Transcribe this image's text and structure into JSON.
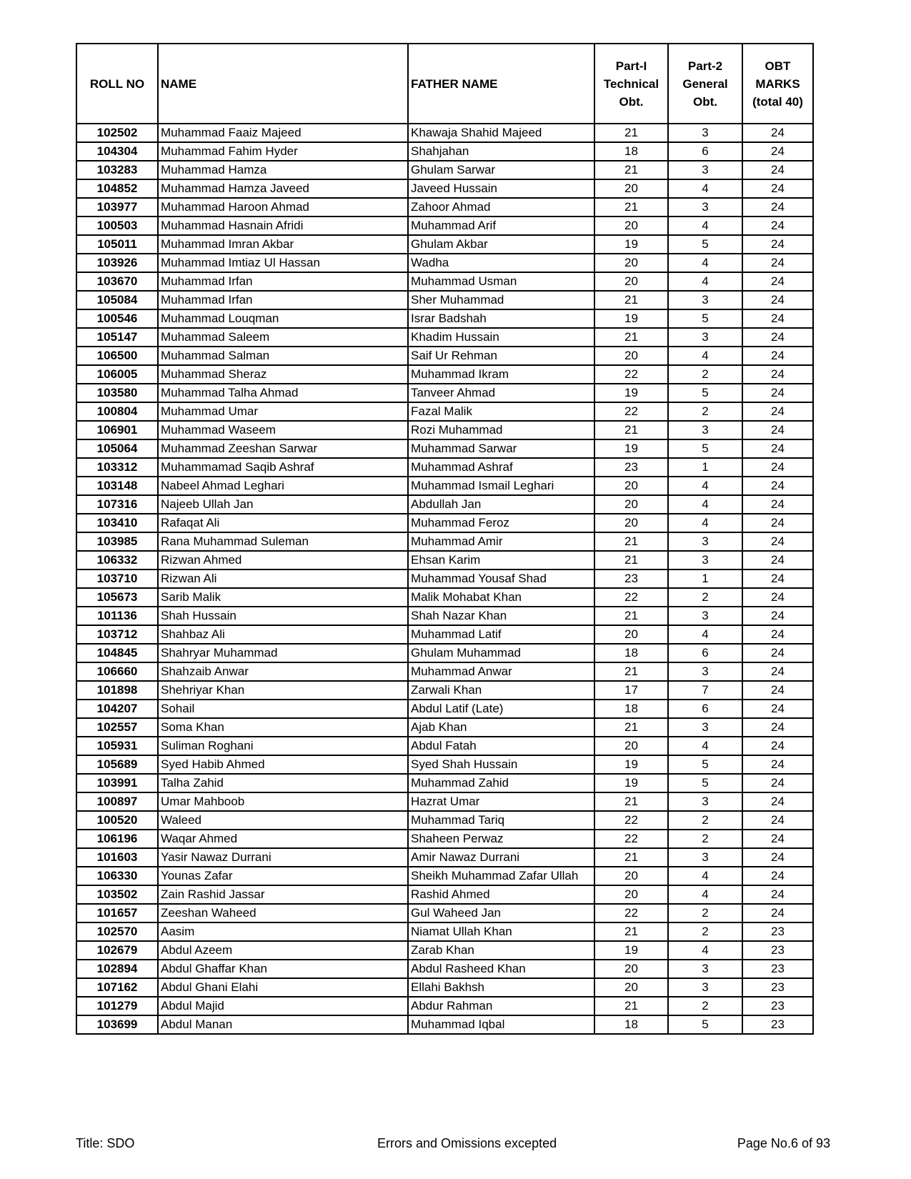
{
  "headers": {
    "roll_no": "ROLL NO",
    "name": "NAME",
    "father_name": "FATHER NAME",
    "part1": [
      "Part-I",
      "Technical",
      "Obt."
    ],
    "part2": [
      "Part-2",
      "General",
      "Obt."
    ],
    "obt": [
      "OBT",
      "MARKS",
      "(total 40)"
    ]
  },
  "rows": [
    [
      "102502",
      "Muhammad Faaiz Majeed",
      "Khawaja Shahid Majeed",
      "21",
      "3",
      "24"
    ],
    [
      "104304",
      "Muhammad Fahim Hyder",
      "Shahjahan",
      "18",
      "6",
      "24"
    ],
    [
      "103283",
      "Muhammad Hamza",
      "Ghulam Sarwar",
      "21",
      "3",
      "24"
    ],
    [
      "104852",
      "Muhammad Hamza Javeed",
      "Javeed Hussain",
      "20",
      "4",
      "24"
    ],
    [
      "103977",
      "Muhammad Haroon Ahmad",
      "Zahoor Ahmad",
      "21",
      "3",
      "24"
    ],
    [
      "100503",
      "Muhammad Hasnain Afridi",
      "Muhammad Arif",
      "20",
      "4",
      "24"
    ],
    [
      "105011",
      "Muhammad Imran Akbar",
      "Ghulam Akbar",
      "19",
      "5",
      "24"
    ],
    [
      "103926",
      "Muhammad Imtiaz Ul Hassan",
      "Wadha",
      "20",
      "4",
      "24"
    ],
    [
      "103670",
      "Muhammad Irfan",
      "Muhammad Usman",
      "20",
      "4",
      "24"
    ],
    [
      "105084",
      "Muhammad Irfan",
      "Sher Muhammad",
      "21",
      "3",
      "24"
    ],
    [
      "100546",
      "Muhammad Louqman",
      "Israr Badshah",
      "19",
      "5",
      "24"
    ],
    [
      "105147",
      "Muhammad Saleem",
      "Khadim Hussain",
      "21",
      "3",
      "24"
    ],
    [
      "106500",
      "Muhammad Salman",
      "Saif Ur Rehman",
      "20",
      "4",
      "24"
    ],
    [
      "106005",
      "Muhammad Sheraz",
      "Muhammad Ikram",
      "22",
      "2",
      "24"
    ],
    [
      "103580",
      "Muhammad Talha Ahmad",
      "Tanveer Ahmad",
      "19",
      "5",
      "24"
    ],
    [
      "100804",
      "Muhammad Umar",
      "Fazal Malik",
      "22",
      "2",
      "24"
    ],
    [
      "106901",
      "Muhammad Waseem",
      "Rozi Muhammad",
      "21",
      "3",
      "24"
    ],
    [
      "105064",
      "Muhammad Zeeshan Sarwar",
      "Muhammad Sarwar",
      "19",
      "5",
      "24"
    ],
    [
      "103312",
      "Muhammamad Saqib Ashraf",
      "Muhammad Ashraf",
      "23",
      "1",
      "24"
    ],
    [
      "103148",
      "Nabeel Ahmad Leghari",
      "Muhammad Ismail Leghari",
      "20",
      "4",
      "24"
    ],
    [
      "107316",
      "Najeeb Ullah Jan",
      "Abdullah Jan",
      "20",
      "4",
      "24"
    ],
    [
      "103410",
      "Rafaqat Ali",
      "Muhammad Feroz",
      "20",
      "4",
      "24"
    ],
    [
      "103985",
      "Rana Muhammad Suleman",
      "Muhammad Amir",
      "21",
      "3",
      "24"
    ],
    [
      "106332",
      "Rizwan Ahmed",
      "Ehsan Karim",
      "21",
      "3",
      "24"
    ],
    [
      "103710",
      "Rizwan Ali",
      "Muhammad Yousaf Shad",
      "23",
      "1",
      "24"
    ],
    [
      "105673",
      "Sarib Malik",
      "Malik Mohabat Khan",
      "22",
      "2",
      "24"
    ],
    [
      "101136",
      "Shah Hussain",
      "Shah Nazar Khan",
      "21",
      "3",
      "24"
    ],
    [
      "103712",
      "Shahbaz Ali",
      "Muhammad Latif",
      "20",
      "4",
      "24"
    ],
    [
      "104845",
      "Shahryar Muhammad",
      "Ghulam Muhammad",
      "18",
      "6",
      "24"
    ],
    [
      "106660",
      "Shahzaib Anwar",
      "Muhammad Anwar",
      "21",
      "3",
      "24"
    ],
    [
      "101898",
      "Shehriyar Khan",
      "Zarwali Khan",
      "17",
      "7",
      "24"
    ],
    [
      "104207",
      "Sohail",
      "Abdul Latif (Late)",
      "18",
      "6",
      "24"
    ],
    [
      "102557",
      "Soma Khan",
      "Ajab Khan",
      "21",
      "3",
      "24"
    ],
    [
      "105931",
      "Suliman Roghani",
      "Abdul Fatah",
      "20",
      "4",
      "24"
    ],
    [
      "105689",
      "Syed Habib Ahmed",
      "Syed Shah Hussain",
      "19",
      "5",
      "24"
    ],
    [
      "103991",
      "Talha Zahid",
      "Muhammad Zahid",
      "19",
      "5",
      "24"
    ],
    [
      "100897",
      "Umar Mahboob",
      "Hazrat Umar",
      "21",
      "3",
      "24"
    ],
    [
      "100520",
      "Waleed",
      "Muhammad Tariq",
      "22",
      "2",
      "24"
    ],
    [
      "106196",
      "Waqar Ahmed",
      "Shaheen Perwaz",
      "22",
      "2",
      "24"
    ],
    [
      "101603",
      "Yasir Nawaz Durrani",
      "Amir Nawaz Durrani",
      "21",
      "3",
      "24"
    ],
    [
      "106330",
      "Younas Zafar",
      "Sheikh Muhammad Zafar Ullah",
      "20",
      "4",
      "24"
    ],
    [
      "103502",
      "Zain Rashid Jassar",
      "Rashid Ahmed",
      "20",
      "4",
      "24"
    ],
    [
      "101657",
      "Zeeshan Waheed",
      "Gul Waheed Jan",
      "22",
      "2",
      "24"
    ],
    [
      "102570",
      "Aasim",
      "Niamat Ullah Khan",
      "21",
      "2",
      "23"
    ],
    [
      "102679",
      "Abdul Azeem",
      "Zarab Khan",
      "19",
      "4",
      "23"
    ],
    [
      "102894",
      "Abdul Ghaffar Khan",
      "Abdul Rasheed Khan",
      "20",
      "3",
      "23"
    ],
    [
      "107162",
      "Abdul Ghani Elahi",
      "Ellahi Bakhsh",
      "20",
      "3",
      "23"
    ],
    [
      "101279",
      "Abdul Majid",
      "Abdur Rahman",
      "21",
      "2",
      "23"
    ],
    [
      "103699",
      "Abdul Manan",
      "Muhammad Iqbal",
      "18",
      "5",
      "23"
    ]
  ],
  "footer": {
    "title": "Title: SDO",
    "note": "Errors and Omissions excepted",
    "page": "Page No.6 of 93"
  }
}
